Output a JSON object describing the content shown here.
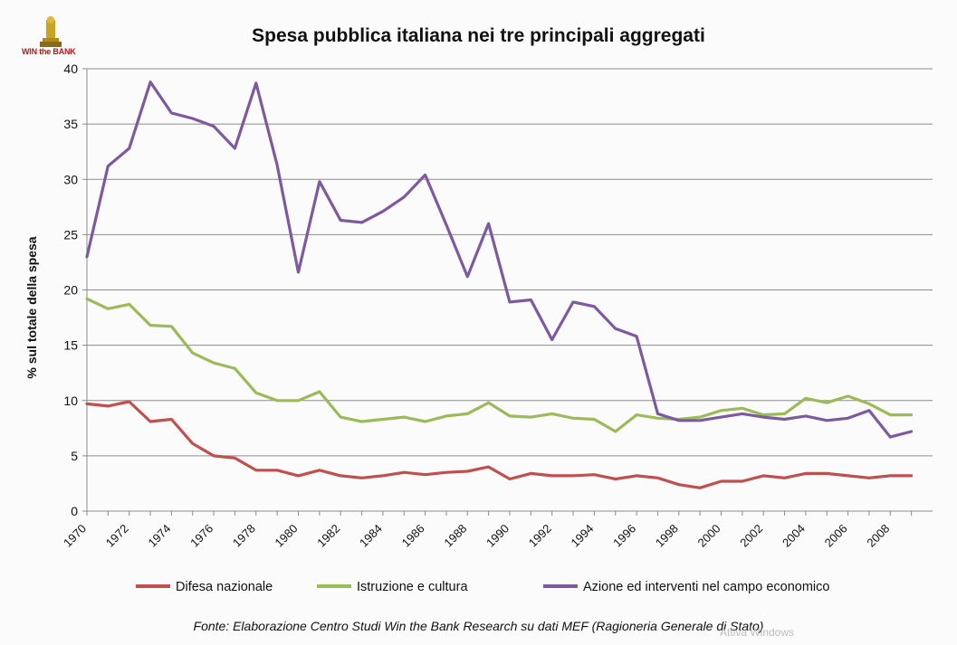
{
  "logo": {
    "text": "WIN the BANK",
    "icon": "trophy-icon"
  },
  "chart_data": {
    "type": "line",
    "title": "Spesa pubblica italiana nei tre principali aggregati",
    "xlabel": "",
    "ylabel": "% sul totale della spesa",
    "ylim": [
      0,
      40
    ],
    "yticks": [
      0,
      5,
      10,
      15,
      20,
      25,
      30,
      35,
      40
    ],
    "ytick_labels": [
      "0",
      "5",
      "10",
      "15",
      "20",
      "25",
      "30",
      "35",
      "40"
    ],
    "x": [
      1970,
      1971,
      1972,
      1973,
      1974,
      1975,
      1976,
      1977,
      1978,
      1979,
      1980,
      1981,
      1982,
      1983,
      1984,
      1985,
      1986,
      1987,
      1988,
      1989,
      1990,
      1991,
      1992,
      1993,
      1994,
      1995,
      1996,
      1997,
      1998,
      1999,
      2000,
      2001,
      2002,
      2003,
      2004,
      2005,
      2006,
      2007,
      2008,
      2009
    ],
    "xtick_labels": [
      "1970",
      "1972",
      "1974",
      "1976",
      "1978",
      "1980",
      "1982",
      "1984",
      "1986",
      "1988",
      "1990",
      "1992",
      "1994",
      "1996",
      "1998",
      "2000",
      "2002",
      "2004",
      "2006",
      "2008"
    ],
    "grid": true,
    "legend_position": "bottom",
    "series": [
      {
        "name": "Difesa nazionale",
        "color": "#c0504d",
        "values": [
          9.7,
          9.5,
          9.9,
          8.1,
          8.3,
          6.1,
          5.0,
          4.8,
          3.7,
          3.7,
          3.2,
          3.7,
          3.2,
          3.0,
          3.2,
          3.5,
          3.3,
          3.5,
          3.6,
          4.0,
          2.9,
          3.4,
          3.2,
          3.2,
          3.3,
          2.9,
          3.2,
          3.0,
          2.4,
          2.1,
          2.7,
          2.7,
          3.2,
          3.0,
          3.4,
          3.4,
          3.2,
          3.0,
          3.2,
          3.2
        ]
      },
      {
        "name": "Istruzione e cultura",
        "color": "#9bbb59",
        "values": [
          19.2,
          18.3,
          18.7,
          16.8,
          16.7,
          14.3,
          13.4,
          12.9,
          10.7,
          10.0,
          10.0,
          10.8,
          8.5,
          8.1,
          8.3,
          8.5,
          8.1,
          8.6,
          8.8,
          9.8,
          8.6,
          8.5,
          8.8,
          8.4,
          8.3,
          7.2,
          8.7,
          8.4,
          8.3,
          8.5,
          9.1,
          9.3,
          8.7,
          8.8,
          10.2,
          9.8,
          10.4,
          9.7,
          8.7,
          8.7
        ]
      },
      {
        "name": "Azione ed interventi nel campo economico",
        "color": "#7d5aa0",
        "values": [
          23.0,
          31.2,
          32.8,
          38.8,
          36.0,
          35.5,
          34.8,
          32.8,
          38.7,
          31.3,
          21.6,
          29.8,
          26.3,
          26.1,
          27.1,
          28.4,
          30.4,
          25.9,
          21.2,
          26.0,
          18.9,
          19.1,
          15.5,
          18.9,
          18.5,
          16.5,
          15.8,
          8.8,
          8.2,
          8.2,
          8.5,
          8.8,
          8.5,
          8.3,
          8.6,
          8.2,
          8.4,
          9.1,
          6.7,
          7.2
        ]
      }
    ],
    "source": "Fonte: Elaborazione Centro Studi Win the Bank Research su dati MEF (Ragioneria Generale di Stato)"
  },
  "overlay": {
    "watermark": "Attiva Windows"
  }
}
